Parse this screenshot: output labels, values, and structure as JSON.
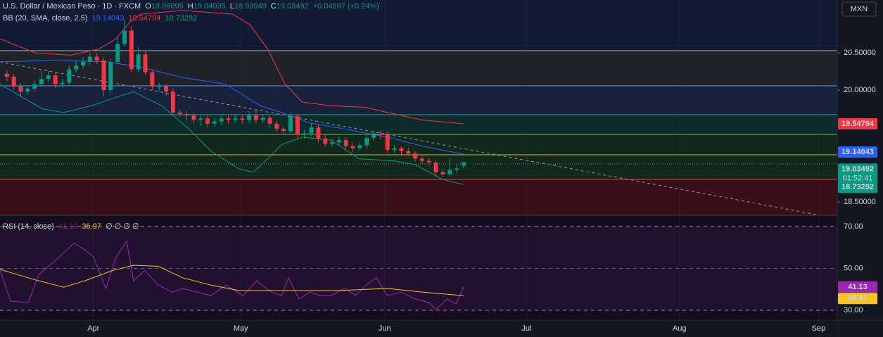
{
  "chart_data": [
    {
      "type": "candlestick",
      "title": "U.S. Dollar / Mexican Peso · 1D · FXCM",
      "ohlc_labels": [
        "O",
        "H",
        "L",
        "C"
      ],
      "change": "+0.04597 (+0.24%)",
      "currency": "MXN",
      "countdown": "01:52:41",
      "indicator": "BB (20, SMA, close, 2.5)",
      "up_color": "#089981",
      "down_color": "#f23645",
      "open": [
        20.22,
        20.18,
        20.05,
        19.98,
        20.02,
        20.08,
        20.15,
        20.2,
        20.08,
        20.1,
        20.28,
        20.33,
        20.38,
        20.45,
        20.4,
        20.0,
        20.38,
        20.62,
        20.8,
        20.28,
        20.48,
        20.24,
        20.05,
        20.05,
        19.98,
        19.7,
        19.68,
        19.66,
        19.6,
        19.62,
        19.55,
        19.58,
        19.62,
        19.6,
        19.62,
        19.6,
        19.66,
        19.6,
        19.63,
        19.55,
        19.48,
        19.45,
        19.65,
        19.4,
        19.42,
        19.5,
        19.35,
        19.28,
        19.3,
        19.33,
        19.25,
        19.22,
        19.26,
        19.36,
        19.42,
        19.4,
        19.2,
        19.22,
        19.18,
        19.15,
        19.08,
        19.05,
        19.03,
        18.9,
        18.87,
        18.93,
        18.98895
      ],
      "high": [
        20.27,
        20.22,
        20.1,
        20.06,
        20.13,
        20.24,
        20.26,
        20.24,
        20.15,
        20.33,
        20.4,
        20.44,
        20.5,
        20.5,
        20.44,
        20.42,
        20.7,
        20.95,
        20.86,
        20.58,
        20.52,
        20.28,
        20.1,
        20.08,
        20.02,
        19.74,
        19.72,
        19.7,
        19.68,
        19.66,
        19.63,
        19.68,
        19.66,
        19.68,
        19.66,
        19.72,
        19.74,
        19.68,
        19.66,
        19.59,
        19.52,
        19.7,
        19.68,
        19.47,
        19.56,
        19.54,
        19.4,
        19.35,
        19.38,
        19.37,
        19.29,
        19.31,
        19.41,
        19.46,
        19.46,
        19.44,
        19.26,
        19.25,
        19.22,
        19.18,
        19.11,
        19.09,
        19.06,
        18.95,
        19.09,
        19.0,
        19.04035
      ],
      "low": [
        20.12,
        20.0,
        19.92,
        19.94,
        19.98,
        20.04,
        20.11,
        20.03,
        20.04,
        20.07,
        20.24,
        20.29,
        20.34,
        20.35,
        19.92,
        19.96,
        20.34,
        20.58,
        20.24,
        20.24,
        20.2,
        20.0,
        19.98,
        19.93,
        19.66,
        19.64,
        19.6,
        19.55,
        19.52,
        19.5,
        19.51,
        19.54,
        19.55,
        19.56,
        19.55,
        19.56,
        19.56,
        19.56,
        19.5,
        19.44,
        19.4,
        19.42,
        19.34,
        19.35,
        19.38,
        19.3,
        19.24,
        19.24,
        19.26,
        19.2,
        19.17,
        19.18,
        19.22,
        19.32,
        19.34,
        19.16,
        19.16,
        19.14,
        19.11,
        19.04,
        19.01,
        18.99,
        18.84,
        18.83,
        18.84,
        18.89,
        18.93949
      ],
      "close": [
        20.18,
        20.05,
        19.98,
        20.02,
        20.08,
        20.15,
        20.2,
        20.08,
        20.1,
        20.28,
        20.33,
        20.38,
        20.45,
        20.4,
        20.0,
        20.38,
        20.62,
        20.8,
        20.28,
        20.48,
        20.24,
        20.05,
        20.05,
        19.98,
        19.7,
        19.68,
        19.66,
        19.6,
        19.62,
        19.55,
        19.58,
        19.62,
        19.6,
        19.62,
        19.6,
        19.66,
        19.6,
        19.63,
        19.55,
        19.48,
        19.45,
        19.65,
        19.4,
        19.42,
        19.5,
        19.35,
        19.28,
        19.3,
        19.33,
        19.25,
        19.22,
        19.26,
        19.36,
        19.42,
        19.4,
        19.2,
        19.22,
        19.18,
        19.15,
        19.08,
        19.05,
        19.03,
        18.9,
        18.87,
        18.93,
        18.95,
        19.03492
      ],
      "series": [
        {
          "name": "Basis",
          "color": "#2962ff",
          "x": [
            -1,
            7.1,
            14.3,
            19.3,
            25.4,
            31.6,
            36.6,
            39.7,
            43.8,
            49.9,
            55,
            60,
            66
          ],
          "values": [
            20.38,
            20.4,
            20.38,
            20.31,
            20.17,
            20.08,
            19.79,
            19.7,
            19.56,
            19.46,
            19.37,
            19.25,
            19.14043
          ]
        },
        {
          "name": "Upper",
          "color": "#f23645",
          "x": [
            -1,
            4.1,
            9.2,
            13.2,
            15.8,
            17.8,
            19.3,
            25.4,
            32.6,
            35.1,
            37.7,
            40.2,
            42.7,
            46.8,
            51.9,
            55,
            60,
            66
          ],
          "values": [
            20.69,
            20.5,
            20.47,
            20.55,
            20.69,
            20.92,
            21.02,
            21.07,
            21.02,
            20.88,
            20.55,
            20.08,
            19.84,
            19.79,
            19.77,
            19.7,
            19.6,
            19.54794
          ]
        },
        {
          "name": "Lower",
          "color": "#089981",
          "x": [
            -1,
            5.1,
            8.2,
            12.2,
            15.3,
            18.3,
            22.4,
            26.5,
            29.5,
            33.6,
            35.6,
            37.7,
            39.7,
            42.7,
            46.8,
            50.9,
            56,
            59,
            63,
            66
          ],
          "values": [
            20.08,
            19.75,
            19.7,
            19.79,
            19.89,
            19.98,
            19.79,
            19.46,
            19.18,
            18.94,
            18.9,
            19.08,
            19.27,
            19.37,
            19.33,
            19.08,
            19.05,
            19.0,
            18.8,
            18.73292
          ]
        }
      ],
      "xlim": [
        -1,
        120
      ],
      "xticks": [
        {
          "value": 12.5,
          "label": "Apr"
        },
        {
          "value": 33.8,
          "label": "May"
        },
        {
          "value": 54.6,
          "label": "Jun"
        },
        {
          "value": 75.1,
          "label": "Jul"
        },
        {
          "value": 97.2,
          "label": "Aug"
        },
        {
          "value": 117.3,
          "label": "Sep"
        }
      ],
      "ylim": [
        18.33,
        21.21
      ],
      "yticks": [
        {
          "value": 20.5,
          "label": "20.50000"
        },
        {
          "value": 20,
          "label": "20.00000"
        },
        {
          "value": 18.5,
          "label": "18.50000"
        }
      ]
    },
    {
      "type": "line",
      "title": "RSI (14, close)",
      "extra": "∅ ∅ ∅ ∅",
      "series": [
        {
          "name": "RSI",
          "color": "#9c27b0",
          "x": [
            -1,
            0.5,
            3.1,
            4.6,
            7.1,
            9.7,
            11.2,
            12.5,
            14.3,
            15.8,
            17.3,
            18.3,
            19.9,
            21.9,
            23.9,
            25.4,
            27.5,
            29.5,
            31.6,
            34.1,
            36.1,
            38.2,
            39.7,
            40.7,
            42.2,
            43.8,
            45.3,
            46.8,
            48.8,
            50.4,
            51.9,
            53.4,
            55,
            57,
            59,
            61,
            62,
            63.6,
            64.9,
            66
          ],
          "values": [
            49.5,
            34.4,
            33.7,
            47,
            54,
            62,
            59,
            55.5,
            40.4,
            55.5,
            63,
            44,
            49,
            42,
            38.7,
            40.4,
            38.7,
            37,
            42,
            37,
            44,
            38.7,
            37,
            45.5,
            35.4,
            38.7,
            37,
            37,
            40.4,
            37,
            42,
            45.5,
            37,
            38.7,
            35.4,
            33.7,
            30.3,
            35.4,
            33,
            41.13
          ]
        },
        {
          "name": "RSI-based MA",
          "color": "#f7c325",
          "x": [
            -1,
            4.1,
            8.2,
            11.2,
            15.3,
            18.3,
            21.9,
            25.4,
            29.5,
            33.6,
            39.7,
            47.8,
            55,
            60,
            66
          ],
          "values": [
            49.5,
            44.5,
            41,
            44,
            49,
            51.5,
            51,
            45.5,
            42,
            39.4,
            39.4,
            39.4,
            40.4,
            38.7,
            36.97
          ]
        }
      ],
      "xlim": [
        -1,
        120
      ],
      "ylim": [
        25.3,
        75.0
      ],
      "yticks": [
        {
          "value": 70,
          "label": "70.00"
        },
        {
          "value": 50,
          "label": "50.00"
        },
        {
          "value": 30,
          "label": "30.00"
        }
      ]
    }
  ]
}
